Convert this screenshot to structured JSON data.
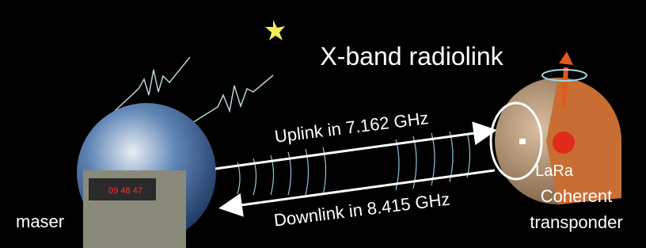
{
  "title": "X-band radiolink",
  "links": {
    "uplink": "Uplink in 7.162 GHz",
    "downlink": "Downlink in 8.415 GHz"
  },
  "ground": {
    "label": "maser",
    "display": "09 48 47"
  },
  "lander": {
    "name": "LaRa",
    "lines": [
      "Coherent",
      "transponder"
    ]
  }
}
